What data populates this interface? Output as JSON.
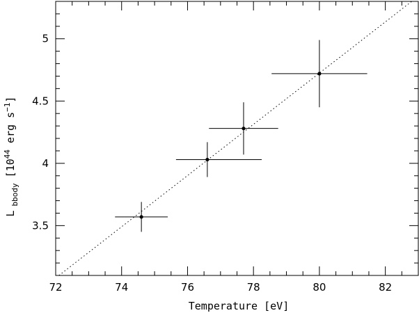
{
  "chart_data": {
    "type": "scatter",
    "title": "",
    "xlabel": "Temperature [eV]",
    "ylabel": {
      "main": "L",
      "subscript": "bbody",
      "unit_open": "[10",
      "unit_exp": "44",
      "unit_mid": " erg s",
      "unit_exp2": "−1",
      "unit_close": "]"
    },
    "xlim": [
      72,
      83
    ],
    "ylim": [
      3.1,
      5.3
    ],
    "x_ticks_major": [
      72,
      74,
      76,
      78,
      80,
      82
    ],
    "x_tick_labels": [
      "72",
      "74",
      "76",
      "78",
      "80",
      "82"
    ],
    "y_ticks_major": [
      3.5,
      4,
      4.5,
      5
    ],
    "y_tick_labels": [
      "3.5",
      "4",
      "4.5",
      "5"
    ],
    "grid": false,
    "points": [
      {
        "x": 74.6,
        "y": 3.57,
        "xerr": [
          0.8,
          0.8
        ],
        "yerr": [
          0.12,
          0.12
        ]
      },
      {
        "x": 76.6,
        "y": 4.03,
        "xerr": [
          0.95,
          1.65
        ],
        "yerr": [
          0.14,
          0.14
        ]
      },
      {
        "x": 77.7,
        "y": 4.28,
        "xerr": [
          1.05,
          1.05
        ],
        "yerr": [
          0.21,
          0.21
        ]
      },
      {
        "x": 80.0,
        "y": 4.72,
        "xerr": [
          1.45,
          1.45
        ],
        "yerr": [
          0.27,
          0.27
        ]
      }
    ],
    "fit_line": {
      "style": "dotted",
      "p1": [
        72.1,
        3.1
      ],
      "p2": [
        82.8,
        5.3
      ]
    }
  }
}
